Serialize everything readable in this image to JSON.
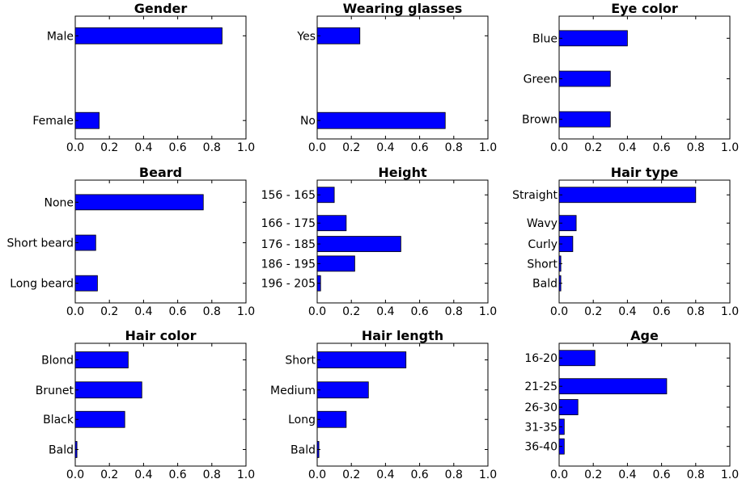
{
  "chart_data": [
    {
      "type": "bar",
      "orientation": "horizontal",
      "title": "Gender",
      "categories": [
        "Male",
        "Female"
      ],
      "values": [
        0.86,
        0.14
      ],
      "xlim": [
        0.0,
        1.0
      ],
      "xticks": [
        "0.0",
        "0.2",
        "0.4",
        "0.6",
        "0.8",
        "1.0"
      ],
      "bar_color": "#0000ff"
    },
    {
      "type": "bar",
      "orientation": "horizontal",
      "title": "Wearing glasses",
      "categories": [
        "Yes",
        "No"
      ],
      "values": [
        0.25,
        0.75
      ],
      "xlim": [
        0.0,
        1.0
      ],
      "xticks": [
        "0.0",
        "0.2",
        "0.4",
        "0.6",
        "0.8",
        "1.0"
      ],
      "bar_color": "#0000ff"
    },
    {
      "type": "bar",
      "orientation": "horizontal",
      "title": "Eye color",
      "categories": [
        "Blue",
        "Green",
        "Brown"
      ],
      "values": [
        0.4,
        0.3,
        0.3
      ],
      "xlim": [
        0.0,
        1.0
      ],
      "xticks": [
        "0.0",
        "0.2",
        "0.4",
        "0.6",
        "0.8",
        "1.0"
      ],
      "bar_color": "#0000ff"
    },
    {
      "type": "bar",
      "orientation": "horizontal",
      "title": "Beard",
      "categories": [
        "None",
        "Short beard",
        "Long beard"
      ],
      "values": [
        0.75,
        0.12,
        0.13
      ],
      "xlim": [
        0.0,
        1.0
      ],
      "xticks": [
        "0.0",
        "0.2",
        "0.4",
        "0.6",
        "0.8",
        "1.0"
      ],
      "bar_color": "#0000ff"
    },
    {
      "type": "bar",
      "orientation": "horizontal",
      "title": "Height",
      "categories": [
        "156 - 165",
        "166 - 175",
        "176 - 185",
        "186 - 195",
        "196 - 205"
      ],
      "values": [
        0.1,
        0.17,
        0.49,
        0.22,
        0.02
      ],
      "xlim": [
        0.0,
        1.0
      ],
      "xticks": [
        "0.0",
        "0.2",
        "0.4",
        "0.6",
        "0.8",
        "1.0"
      ],
      "bar_color": "#0000ff"
    },
    {
      "type": "bar",
      "orientation": "horizontal",
      "title": "Hair type",
      "categories": [
        "Straight",
        "Wavy",
        "Curly",
        "Short",
        "Bald"
      ],
      "values": [
        0.8,
        0.1,
        0.08,
        0.01,
        0.01
      ],
      "xlim": [
        0.0,
        1.0
      ],
      "xticks": [
        "0.0",
        "0.2",
        "0.4",
        "0.6",
        "0.8",
        "1.0"
      ],
      "bar_color": "#0000ff"
    },
    {
      "type": "bar",
      "orientation": "horizontal",
      "title": "Hair color",
      "categories": [
        "Blond",
        "Brunet",
        "Black",
        "Bald"
      ],
      "values": [
        0.31,
        0.39,
        0.29,
        0.01
      ],
      "xlim": [
        0.0,
        1.0
      ],
      "xticks": [
        "0.0",
        "0.2",
        "0.4",
        "0.6",
        "0.8",
        "1.0"
      ],
      "bar_color": "#0000ff"
    },
    {
      "type": "bar",
      "orientation": "horizontal",
      "title": "Hair length",
      "categories": [
        "Short",
        "Medium",
        "Long",
        "Bald"
      ],
      "values": [
        0.52,
        0.3,
        0.17,
        0.01
      ],
      "xlim": [
        0.0,
        1.0
      ],
      "xticks": [
        "0.0",
        "0.2",
        "0.4",
        "0.6",
        "0.8",
        "1.0"
      ],
      "bar_color": "#0000ff"
    },
    {
      "type": "bar",
      "orientation": "horizontal",
      "title": "Age",
      "categories": [
        "16-20",
        "21-25",
        "26-30",
        "31-35",
        "36-40"
      ],
      "values": [
        0.21,
        0.63,
        0.11,
        0.03,
        0.03
      ],
      "xlim": [
        0.0,
        1.0
      ],
      "xticks": [
        "0.0",
        "0.2",
        "0.4",
        "0.6",
        "0.8",
        "1.0"
      ],
      "bar_color": "#0000ff"
    }
  ]
}
